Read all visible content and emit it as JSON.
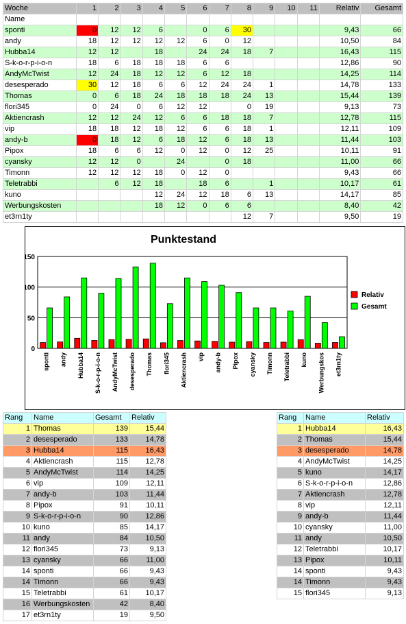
{
  "main_table": {
    "header": [
      "Woche",
      "1",
      "2",
      "3",
      "4",
      "5",
      "6",
      "7",
      "8",
      "9",
      "10",
      "11",
      "Relativ",
      "Gesamt"
    ],
    "subheader": "Name",
    "rows": [
      {
        "name": "sponti",
        "w": [
          "0",
          "12",
          "12",
          "6",
          "",
          "0",
          "6",
          "30",
          "",
          "",
          ""
        ],
        "relativ": "9,43",
        "gesamt": "66",
        "hl": {
          "0": "red",
          "7": "yellow"
        }
      },
      {
        "name": "andy",
        "w": [
          "18",
          "12",
          "12",
          "12",
          "12",
          "6",
          "0",
          "12",
          "",
          "",
          ""
        ],
        "relativ": "10,50",
        "gesamt": "84"
      },
      {
        "name": "Hubba14",
        "w": [
          "12",
          "12",
          "",
          "18",
          "",
          "24",
          "24",
          "18",
          "7",
          "",
          ""
        ],
        "relativ": "16,43",
        "gesamt": "115"
      },
      {
        "name": "S-k-o-r-p-i-o-n",
        "w": [
          "18",
          "6",
          "18",
          "18",
          "18",
          "6",
          "6",
          "",
          "",
          "",
          ""
        ],
        "relativ": "12,86",
        "gesamt": "90"
      },
      {
        "name": "AndyMcTwist",
        "w": [
          "12",
          "24",
          "18",
          "12",
          "12",
          "6",
          "12",
          "18",
          "",
          "",
          ""
        ],
        "relativ": "14,25",
        "gesamt": "114"
      },
      {
        "name": "desesperado",
        "w": [
          "30",
          "12",
          "18",
          "6",
          "6",
          "12",
          "24",
          "24",
          "1",
          "",
          ""
        ],
        "relativ": "14,78",
        "gesamt": "133",
        "hl": {
          "0": "yellow"
        }
      },
      {
        "name": "Thomas",
        "w": [
          "0",
          "6",
          "18",
          "24",
          "18",
          "18",
          "18",
          "24",
          "13",
          "",
          ""
        ],
        "relativ": "15,44",
        "gesamt": "139"
      },
      {
        "name": "flori345",
        "w": [
          "0",
          "24",
          "0",
          "6",
          "12",
          "12",
          "",
          "0",
          "19",
          "",
          ""
        ],
        "relativ": "9,13",
        "gesamt": "73"
      },
      {
        "name": "Aktiencrash",
        "w": [
          "12",
          "12",
          "24",
          "12",
          "6",
          "6",
          "18",
          "18",
          "7",
          "",
          ""
        ],
        "relativ": "12,78",
        "gesamt": "115"
      },
      {
        "name": "vip",
        "w": [
          "18",
          "18",
          "12",
          "18",
          "12",
          "6",
          "6",
          "18",
          "1",
          "",
          ""
        ],
        "relativ": "12,11",
        "gesamt": "109"
      },
      {
        "name": "andy-b",
        "w": [
          "0",
          "18",
          "12",
          "6",
          "18",
          "12",
          "6",
          "18",
          "13",
          "",
          ""
        ],
        "relativ": "11,44",
        "gesamt": "103",
        "hl": {
          "0": "red"
        }
      },
      {
        "name": "Pipox",
        "w": [
          "18",
          "6",
          "6",
          "12",
          "0",
          "12",
          "0",
          "12",
          "25",
          "",
          ""
        ],
        "relativ": "10,11",
        "gesamt": "91"
      },
      {
        "name": "cyansky",
        "w": [
          "12",
          "12",
          "0",
          "",
          "24",
          "",
          "0",
          "18",
          "",
          "",
          ""
        ],
        "relativ": "11,00",
        "gesamt": "66"
      },
      {
        "name": "Timonn",
        "w": [
          "12",
          "12",
          "12",
          "18",
          "0",
          "12",
          "0",
          "",
          "",
          "",
          ""
        ],
        "relativ": "9,43",
        "gesamt": "66"
      },
      {
        "name": "Teletrabbi",
        "w": [
          "",
          "6",
          "12",
          "18",
          "",
          "18",
          "6",
          "",
          "1",
          "",
          ""
        ],
        "relativ": "10,17",
        "gesamt": "61"
      },
      {
        "name": "kuno",
        "w": [
          "",
          "",
          "",
          "12",
          "24",
          "12",
          "18",
          "6",
          "13",
          "",
          ""
        ],
        "relativ": "14,17",
        "gesamt": "85"
      },
      {
        "name": "Werbungskosten",
        "w": [
          "",
          "",
          "",
          "18",
          "12",
          "0",
          "6",
          "6",
          "",
          "",
          ""
        ],
        "relativ": "8,40",
        "gesamt": "42"
      },
      {
        "name": "et3rn1ty",
        "w": [
          "",
          "",
          "",
          "",
          "",
          "",
          "",
          "12",
          "7",
          "",
          ""
        ],
        "relativ": "9,50",
        "gesamt": "19"
      }
    ]
  },
  "chart_data": {
    "type": "bar",
    "title": "Punktestand",
    "categories": [
      "sponti",
      "andy",
      "Hubba14",
      "S-k-o-r-p-i-o-n",
      "AndyMcTwist",
      "desesperado",
      "Thomas",
      "flori345",
      "Aktiencrash",
      "vip",
      "andy-b",
      "Pipox",
      "cyansky",
      "Timonn",
      "Teletrabbi",
      "kuno",
      "Werbungskos",
      "et3rn1ty"
    ],
    "series": [
      {
        "name": "Relativ",
        "color": "#ff0000",
        "values": [
          9.43,
          10.5,
          16.43,
          12.86,
          14.25,
          14.78,
          15.44,
          9.13,
          12.78,
          12.11,
          11.44,
          10.11,
          11.0,
          9.43,
          10.17,
          14.17,
          8.4,
          9.5
        ]
      },
      {
        "name": "Gesamt",
        "color": "#00ff00",
        "values": [
          66,
          84,
          115,
          90,
          114,
          133,
          139,
          73,
          115,
          109,
          103,
          91,
          66,
          66,
          61,
          85,
          42,
          19
        ]
      }
    ],
    "yticks": [
      "0",
      "50",
      "100",
      "150"
    ],
    "ylim": [
      0,
      150
    ],
    "grid": true,
    "legend": "right"
  },
  "rank_left": {
    "headers": [
      "Rang",
      "Name",
      "Gesamt",
      "Relativ"
    ],
    "rows": [
      {
        "rang": "1",
        "name": "Thomas",
        "a": "139",
        "b": "15,44",
        "s": "y"
      },
      {
        "rang": "2",
        "name": "desesperado",
        "a": "133",
        "b": "14,78",
        "s": "g"
      },
      {
        "rang": "3",
        "name": "Hubba14",
        "a": "115",
        "b": "16,43",
        "s": "o"
      },
      {
        "rang": "4",
        "name": "Aktiencrash",
        "a": "115",
        "b": "12,78",
        "s": "w"
      },
      {
        "rang": "5",
        "name": "AndyMcTwist",
        "a": "114",
        "b": "14,25",
        "s": "g"
      },
      {
        "rang": "6",
        "name": "vip",
        "a": "109",
        "b": "12,11",
        "s": "w"
      },
      {
        "rang": "7",
        "name": "andy-b",
        "a": "103",
        "b": "11,44",
        "s": "g"
      },
      {
        "rang": "8",
        "name": "Pipox",
        "a": "91",
        "b": "10,11",
        "s": "w"
      },
      {
        "rang": "9",
        "name": "S-k-o-r-p-i-o-n",
        "a": "90",
        "b": "12,86",
        "s": "g"
      },
      {
        "rang": "10",
        "name": "kuno",
        "a": "85",
        "b": "14,17",
        "s": "w"
      },
      {
        "rang": "11",
        "name": "andy",
        "a": "84",
        "b": "10,50",
        "s": "g"
      },
      {
        "rang": "12",
        "name": "flori345",
        "a": "73",
        "b": "9,13",
        "s": "w"
      },
      {
        "rang": "13",
        "name": "cyansky",
        "a": "66",
        "b": "11,00",
        "s": "g"
      },
      {
        "rang": "14",
        "name": "sponti",
        "a": "66",
        "b": "9,43",
        "s": "w"
      },
      {
        "rang": "14",
        "name": "Timonn",
        "a": "66",
        "b": "9,43",
        "s": "g"
      },
      {
        "rang": "15",
        "name": "Teletrabbi",
        "a": "61",
        "b": "10,17",
        "s": "w"
      },
      {
        "rang": "16",
        "name": "Werbungskosten",
        "a": "42",
        "b": "8,40",
        "s": "g"
      },
      {
        "rang": "17",
        "name": "et3rn1ty",
        "a": "19",
        "b": "9,50",
        "s": "w"
      }
    ]
  },
  "rank_right": {
    "headers": [
      "Rang",
      "Name",
      "Relativ"
    ],
    "rows": [
      {
        "rang": "1",
        "name": "Hubba14",
        "b": "16,43",
        "s": "y"
      },
      {
        "rang": "2",
        "name": "Thomas",
        "b": "15,44",
        "s": "g"
      },
      {
        "rang": "3",
        "name": "desesperado",
        "b": "14,78",
        "s": "o"
      },
      {
        "rang": "4",
        "name": "AndyMcTwist",
        "b": "14,25",
        "s": "w"
      },
      {
        "rang": "5",
        "name": "kuno",
        "b": "14,17",
        "s": "g"
      },
      {
        "rang": "6",
        "name": "S-k-o-r-p-i-o-n",
        "b": "12,86",
        "s": "w"
      },
      {
        "rang": "7",
        "name": "Aktiencrash",
        "b": "12,78",
        "s": "g"
      },
      {
        "rang": "8",
        "name": "vip",
        "b": "12,11",
        "s": "w"
      },
      {
        "rang": "9",
        "name": "andy-b",
        "b": "11,44",
        "s": "g"
      },
      {
        "rang": "10",
        "name": "cyansky",
        "b": "11,00",
        "s": "w"
      },
      {
        "rang": "11",
        "name": "andy",
        "b": "10,50",
        "s": "g"
      },
      {
        "rang": "12",
        "name": "Teletrabbi",
        "b": "10,17",
        "s": "w"
      },
      {
        "rang": "13",
        "name": "Pipox",
        "b": "10,11",
        "s": "g"
      },
      {
        "rang": "14",
        "name": "sponti",
        "b": "9,43",
        "s": "w"
      },
      {
        "rang": "14",
        "name": "Timonn",
        "b": "9,43",
        "s": "g"
      },
      {
        "rang": "15",
        "name": "flori345",
        "b": "9,13",
        "s": "w"
      }
    ]
  }
}
